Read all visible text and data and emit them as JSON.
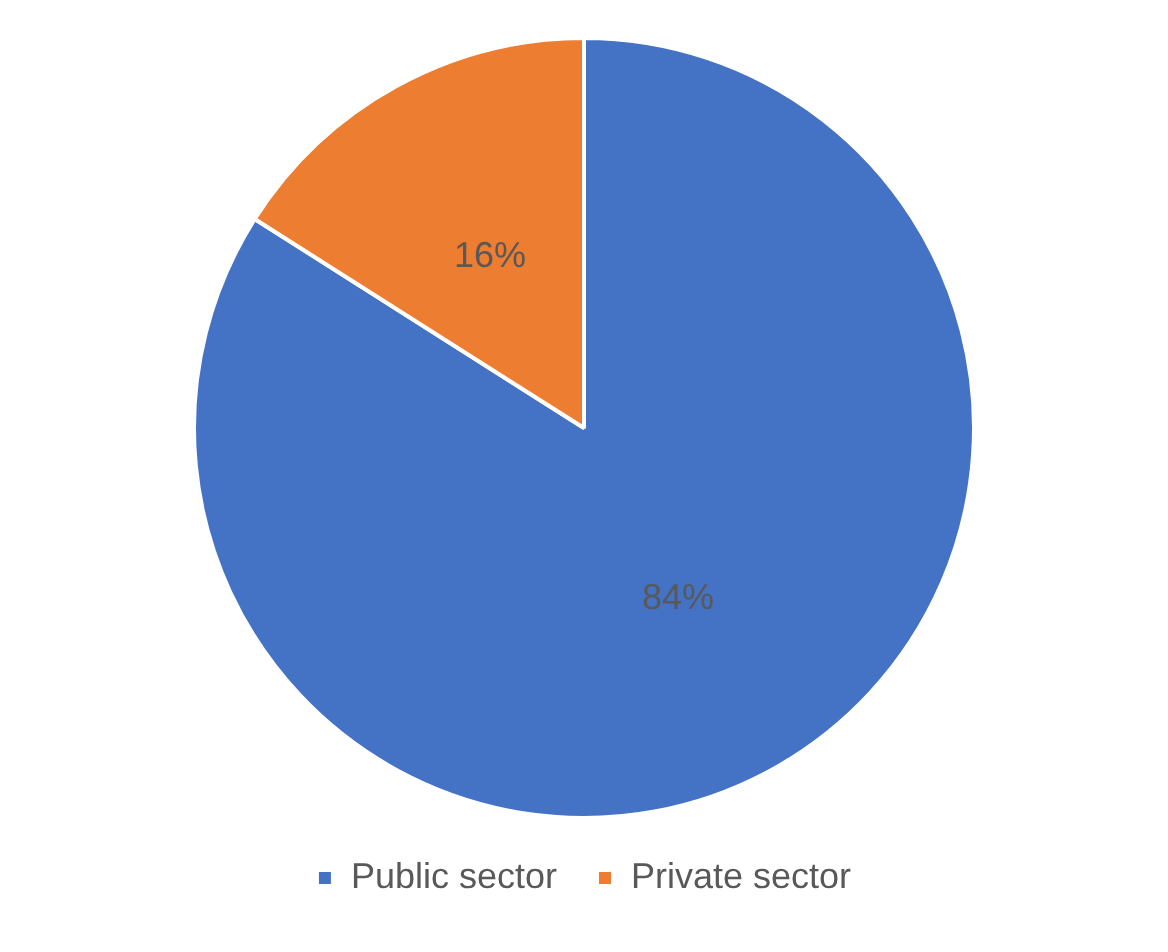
{
  "chart_data": {
    "type": "pie",
    "categories": [
      "Public sector",
      "Private sector"
    ],
    "values": [
      84,
      16
    ],
    "colors": [
      "#4472c4",
      "#ed7d31"
    ],
    "value_labels": [
      "84%",
      "16%"
    ],
    "legend": "bottom"
  }
}
